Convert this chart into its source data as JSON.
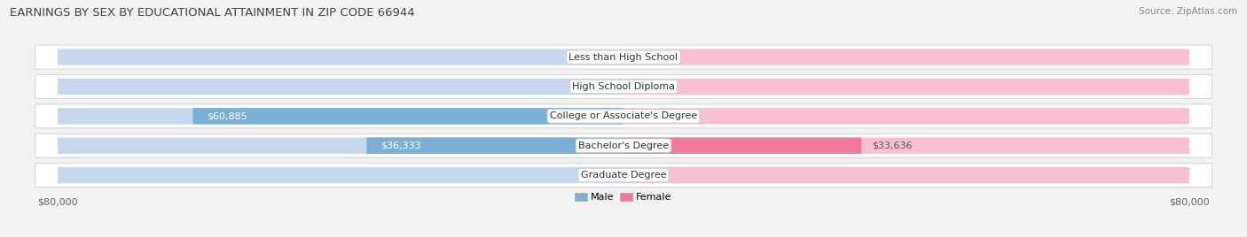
{
  "title": "EARNINGS BY SEX BY EDUCATIONAL ATTAINMENT IN ZIP CODE 66944",
  "source": "Source: ZipAtlas.com",
  "categories": [
    "Less than High School",
    "High School Diploma",
    "College or Associate's Degree",
    "Bachelor's Degree",
    "Graduate Degree"
  ],
  "male_values": [
    0,
    0,
    60885,
    36333,
    0
  ],
  "female_values": [
    0,
    0,
    0,
    33636,
    0
  ],
  "male_color": "#7bafd4",
  "female_color": "#f07898",
  "male_bg_color": "#c5d8ee",
  "female_bg_color": "#f8c0d0",
  "male_label": "Male",
  "female_label": "Female",
  "axis_max": 80000,
  "bg_color": "#f2f2f2",
  "row_bg_color": "#ffffff",
  "row_border_color": "#d8d8d8",
  "label_fontsize": 8.0,
  "title_fontsize": 9.5,
  "source_fontsize": 7.5,
  "value_color_dark": "#555555",
  "value_color_white": "#ffffff"
}
